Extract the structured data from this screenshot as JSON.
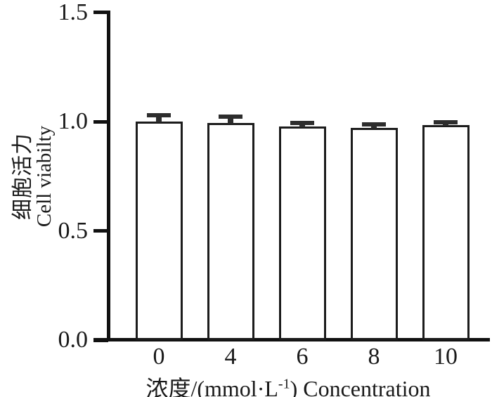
{
  "figure": {
    "background": "#ffffff",
    "ink_color": "#1a1a1a",
    "axis_color": "#111111",
    "bar_fill": "#ffffff",
    "bar_border": "#1c1c1c",
    "error_bar_color": "#2d2d2d"
  },
  "y_axis": {
    "title_line1": "细胞活力",
    "title_line2": "Cell viabilty",
    "range": [
      0.0,
      1.5
    ],
    "ticks": [
      {
        "value": 0.0,
        "label": "0.0"
      },
      {
        "value": 0.5,
        "label": "0.5"
      },
      {
        "value": 1.0,
        "label": "1.0"
      },
      {
        "value": 1.5,
        "label": "1.5"
      }
    ]
  },
  "x_axis": {
    "title_prefix": "浓度/(mmol·L",
    "title_sup": "-1",
    "title_suffix": ") Concentration",
    "categories": [
      "0",
      "4",
      "6",
      "8",
      "10"
    ]
  },
  "chart_data": {
    "type": "bar",
    "title": "",
    "xlabel": "浓度/(mmol·L⁻¹) Concentration",
    "ylabel": "细胞活力 Cell viabilty",
    "categories": [
      "0",
      "4",
      "6",
      "8",
      "10"
    ],
    "values": [
      1.0,
      0.995,
      0.977,
      0.971,
      0.984
    ],
    "errors": [
      0.029,
      0.027,
      0.015,
      0.015,
      0.014
    ],
    "ylim": [
      0.0,
      1.5
    ],
    "y_ticks": [
      0.0,
      0.5,
      1.0,
      1.5
    ],
    "grid": false,
    "legend_position": "none",
    "bar_style": "white fill, black outline, upper error bars with caps"
  }
}
